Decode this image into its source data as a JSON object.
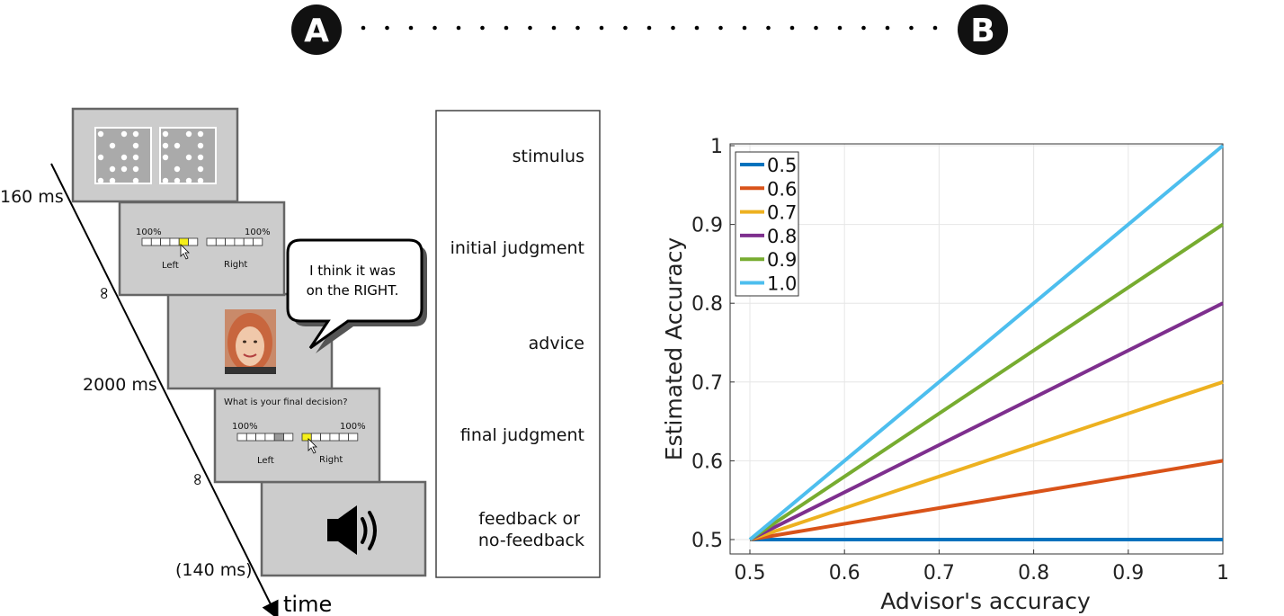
{
  "badges": {
    "a": "A",
    "b": "B"
  },
  "timeline": {
    "durations": [
      "160 ms",
      "∞",
      "2000 ms",
      "∞",
      "(140 ms)"
    ],
    "axis_label": "time"
  },
  "screens": {
    "scale_max_label": "100%",
    "left_label": "Left",
    "right_label": "Right",
    "final_question": "What is your final decision?",
    "advice_bubble": [
      "I think it was",
      "on the RIGHT."
    ],
    "speaker_icon": "speaker-icon",
    "highlight_color": "#f5ef1a"
  },
  "phases": [
    "stimulus",
    "initial judgment",
    "advice",
    "final judgment",
    [
      "feedback or",
      "no-feedback"
    ]
  ],
  "chart_data": {
    "type": "line",
    "xlabel": "Advisor's accuracy",
    "ylabel": "Estimated Accuracy",
    "xlim": [
      0.5,
      1.0
    ],
    "ylim": [
      0.5,
      1.0
    ],
    "xticks": [
      "0.5",
      "0.6",
      "0.7",
      "0.8",
      "0.9",
      "1"
    ],
    "yticks": [
      "0.5",
      "0.6",
      "0.7",
      "0.8",
      "0.9",
      "1"
    ],
    "grid": true,
    "legend_position": "top-left",
    "x": [
      0.5,
      1.0
    ],
    "series": [
      {
        "name": "0.5",
        "values": [
          0.5,
          0.5
        ],
        "color": "#0072bd"
      },
      {
        "name": "0.6",
        "values": [
          0.5,
          0.6
        ],
        "color": "#d95319"
      },
      {
        "name": "0.7",
        "values": [
          0.5,
          0.7
        ],
        "color": "#edb120"
      },
      {
        "name": "0.8",
        "values": [
          0.5,
          0.8
        ],
        "color": "#7e2f8e"
      },
      {
        "name": "0.9",
        "values": [
          0.5,
          0.9
        ],
        "color": "#77ac30"
      },
      {
        "name": "1.0",
        "values": [
          0.5,
          1.0
        ],
        "color": "#4dbeee"
      }
    ]
  }
}
